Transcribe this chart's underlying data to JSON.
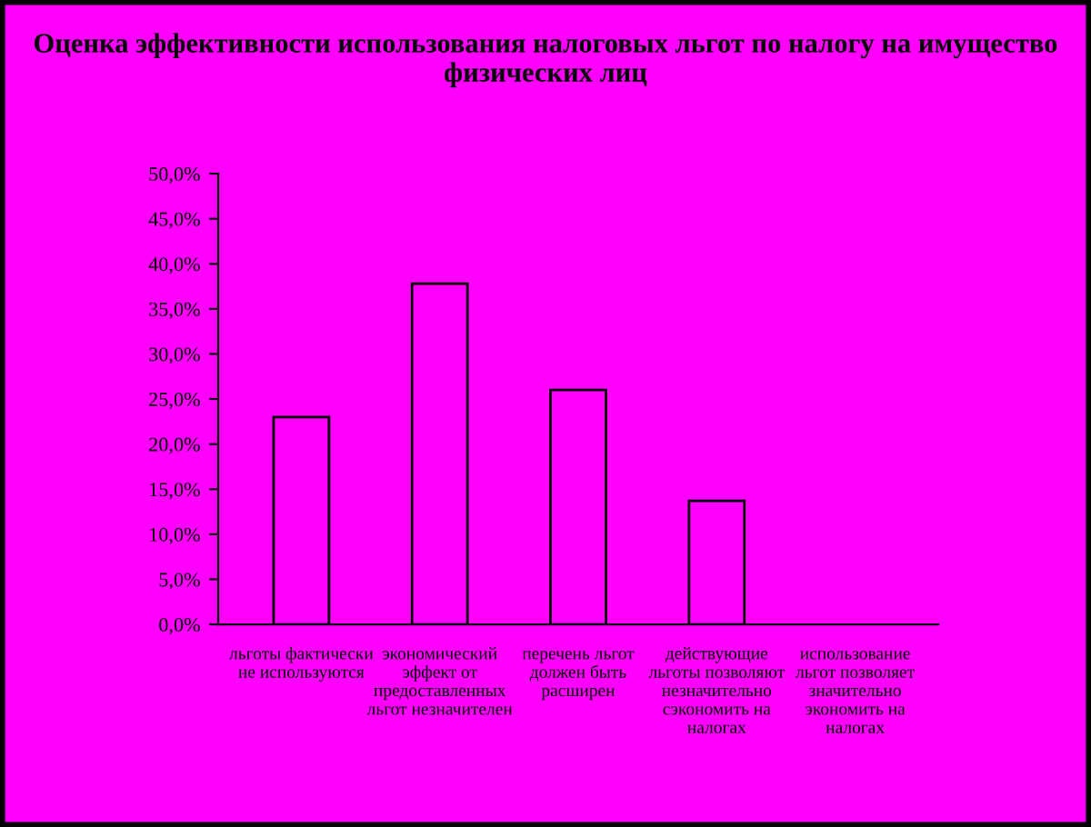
{
  "chart_data": {
    "type": "bar",
    "title": "Оценка эффективности использования налоговых льгот по налогу на имущество физических лиц",
    "categories": [
      "льготы фактически не используются",
      "экономический эффект от предоставленных льгот незначителен",
      "перечень льгот должен быть расширен",
      "действующие льготы позволяют незначительно сэкономить на налогах",
      "использование льгот позволяет значительно экономить на налогах"
    ],
    "values": [
      23.0,
      37.8,
      26.0,
      13.7,
      0
    ],
    "color": "#ff00ff",
    "ylim": [
      0,
      50
    ],
    "yticks": [
      {
        "value": 0,
        "label": "0,0%"
      },
      {
        "value": 5,
        "label": "5,0%"
      },
      {
        "value": 10,
        "label": "10,0%"
      },
      {
        "value": 15,
        "label": "15,0%"
      },
      {
        "value": 20,
        "label": "20,0%"
      },
      {
        "value": 25,
        "label": "25,0%"
      },
      {
        "value": 30,
        "label": "30,0%"
      },
      {
        "value": 35,
        "label": "35,0%"
      },
      {
        "value": 40,
        "label": "40,0%"
      },
      {
        "value": 45,
        "label": "45,0%"
      },
      {
        "value": 50,
        "label": "50,0%"
      }
    ],
    "grid": false,
    "legend": false
  }
}
